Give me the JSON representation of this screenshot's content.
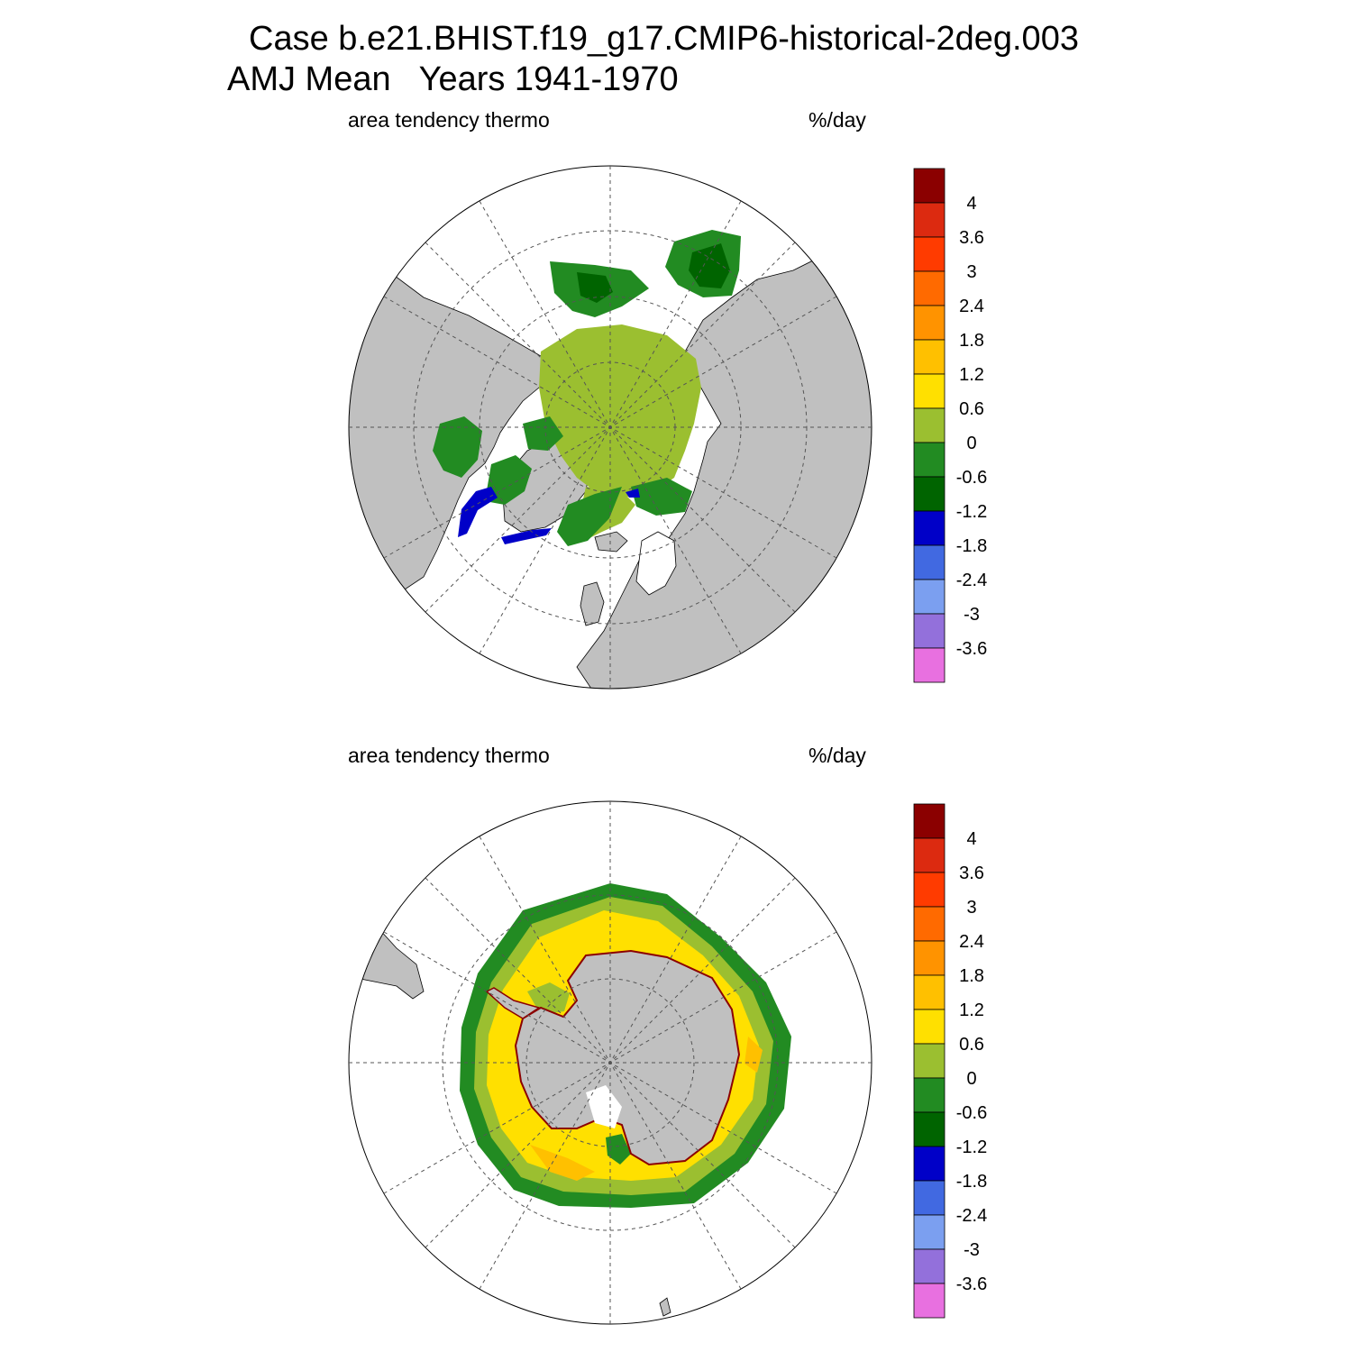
{
  "header": {
    "title_line1": "Case b.e21.BHIST.f19_g17.CMIP6-historical-2deg.003",
    "title_line2": "AMJ Mean   Years 1941-1970"
  },
  "panels": [
    {
      "id": "north",
      "variable_label": "area tendency thermo",
      "units_label": "%/day",
      "hemisphere": "Arctic (north polar stereographic)"
    },
    {
      "id": "south",
      "variable_label": "area tendency thermo",
      "units_label": "%/day",
      "hemisphere": "Antarctic (south polar stereographic)"
    }
  ],
  "colorbar": {
    "labels": [
      "4",
      "3.6",
      "3",
      "2.4",
      "1.8",
      "1.2",
      "0.6",
      "0",
      "-0.6",
      "-1.2",
      "-1.8",
      "-2.4",
      "-3",
      "-3.6"
    ],
    "colors_top_to_bottom": [
      "#8b0000",
      "#dc2a10",
      "#ff3b00",
      "#ff6a00",
      "#ff9300",
      "#ffc000",
      "#ffe000",
      "#9bbf30",
      "#228b22",
      "#006400",
      "#0000c8",
      "#4169e1",
      "#7b9ff0",
      "#9370db",
      "#e870e0"
    ]
  },
  "map_colors": {
    "land": "#c0c0c0",
    "ocean_no_ice": "#ffffff",
    "grid": "#555555"
  }
}
